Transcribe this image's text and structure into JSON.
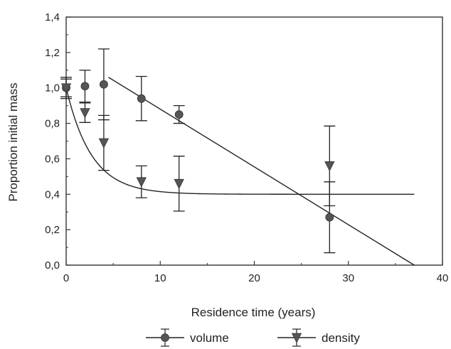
{
  "chart_data": {
    "type": "scatter",
    "title": "",
    "xlabel": "Residence time (years)",
    "ylabel": "Proportion initial mass",
    "xlim": [
      0,
      40
    ],
    "ylim": [
      0,
      1.4
    ],
    "x_ticks": [
      "0",
      "10",
      "20",
      "30",
      "40"
    ],
    "y_ticks": [
      "0,0",
      "0,2",
      "0,4",
      "0,6",
      "0,8",
      "1,0",
      "1,2",
      "1,4"
    ],
    "grid": false,
    "legend_position": "bottom",
    "series": [
      {
        "name": "volume",
        "marker": "circle",
        "color": "#555555",
        "points": [
          {
            "x": 0,
            "y": 1.0,
            "err": 0.05
          },
          {
            "x": 2,
            "y": 1.01,
            "err": 0.09
          },
          {
            "x": 4,
            "y": 1.02,
            "err": 0.2
          },
          {
            "x": 8,
            "y": 0.94,
            "err": 0.125
          },
          {
            "x": 12,
            "y": 0.85,
            "err": 0.05
          },
          {
            "x": 28,
            "y": 0.27,
            "err": 0.2
          }
        ],
        "fit": {
          "type": "linear",
          "x": [
            4.5,
            37
          ],
          "y": [
            1.06,
            0.0
          ]
        }
      },
      {
        "name": "density",
        "marker": "triangle-down",
        "color": "#555555",
        "points": [
          {
            "x": 0,
            "y": 1.0,
            "err": 0.06
          },
          {
            "x": 2,
            "y": 0.86,
            "err": 0.055
          },
          {
            "x": 4,
            "y": 0.69,
            "err": 0.155
          },
          {
            "x": 8,
            "y": 0.47,
            "err": 0.09
          },
          {
            "x": 12,
            "y": 0.46,
            "err": 0.155
          },
          {
            "x": 28,
            "y": 0.56,
            "err": 0.225
          }
        ],
        "fit": {
          "type": "exponential-decay",
          "x_start": 0,
          "x_end": 37,
          "asymptote": 0.4,
          "amplitude": 0.6,
          "rate": 0.37
        }
      }
    ]
  }
}
